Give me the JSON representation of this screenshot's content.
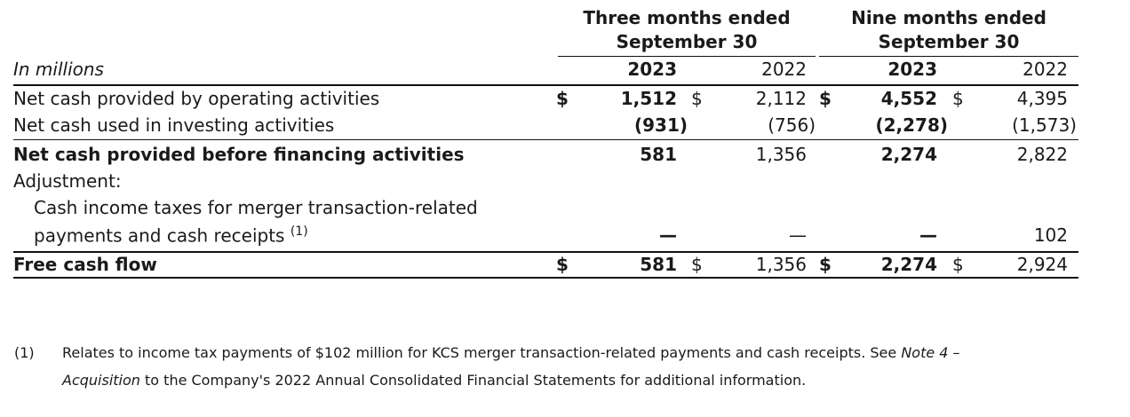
{
  "header": {
    "group1": {
      "line1": "Three months ended",
      "line2": "September 30"
    },
    "group2": {
      "line1": "Nine months ended",
      "line2": "September 30"
    },
    "units_label": "In millions",
    "years": [
      "2023",
      "2022",
      "2023",
      "2022"
    ]
  },
  "rows": {
    "operating": {
      "label": "Net cash provided by operating activities",
      "cur1": "$",
      "v1": "1,512",
      "cur2": "$",
      "v2": "2,112",
      "cur3": "$",
      "v3": "4,552",
      "cur4": "$",
      "v4": "4,395"
    },
    "investing": {
      "label": "Net cash used in investing activities",
      "v1": "(931)",
      "v2": "(756)",
      "v3": "(2,278)",
      "v4": "(1,573)"
    },
    "before_financing": {
      "label": "Net cash provided before financing activities",
      "v1": "581",
      "v2": "1,356",
      "v3": "2,274",
      "v4": "2,822"
    },
    "adjustment": {
      "label": "Adjustment:"
    },
    "cash_income_taxes": {
      "label_line1": "Cash income taxes for merger transaction-related",
      "label_line2": "payments and cash receipts",
      "footnote_ref": "(1)",
      "v1": "—",
      "v2": "—",
      "v3": "—",
      "v4": "102"
    },
    "free_cash_flow": {
      "label": "Free cash flow",
      "cur1": "$",
      "v1": "581",
      "cur2": "$",
      "v2": "1,356",
      "cur3": "$",
      "v3": "2,274",
      "cur4": "$",
      "v4": "2,924"
    }
  },
  "footnote": {
    "marker": "(1)",
    "line1": "Relates to income tax payments of $102 million for KCS merger transaction-related payments and cash receipts. See",
    "note_ref": "Note 4 –",
    "note_ref2": "Acquisition",
    "line2_rest": "to the Company's 2022 Annual Consolidated Financial Statements for additional information."
  }
}
